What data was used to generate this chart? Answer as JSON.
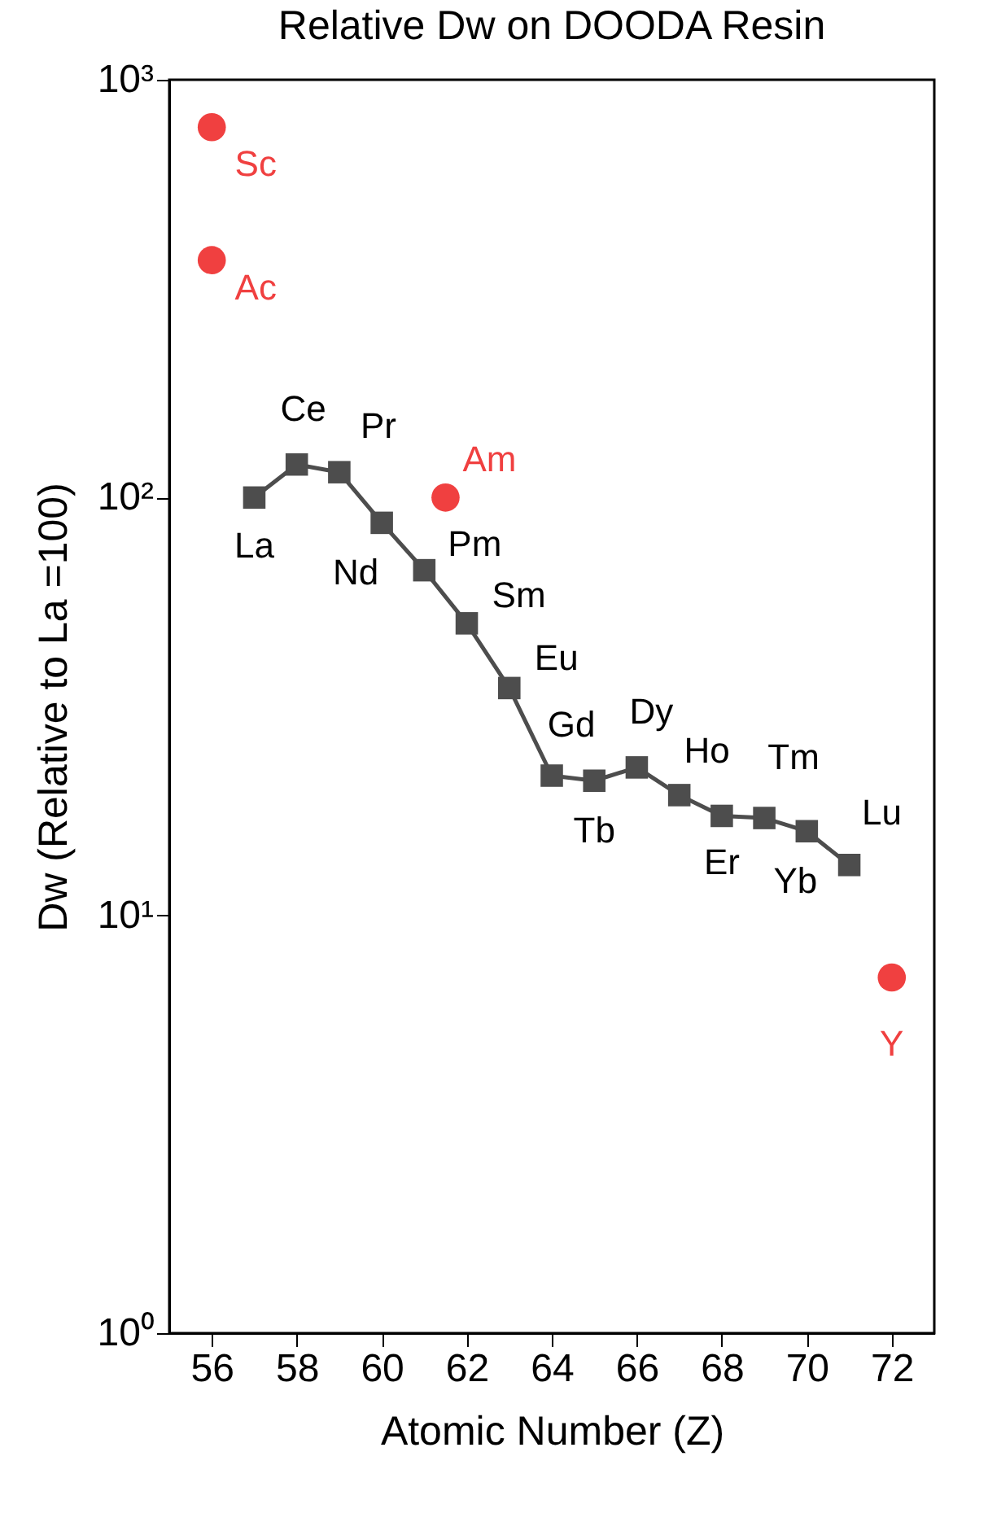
{
  "chart_data": {
    "type": "line",
    "title": "Relative Dw on DOODA Resin",
    "xlabel": "Atomic Number (Z)",
    "ylabel": "Dw (Relative to La =100)",
    "log": "y",
    "grid": false,
    "xlim": [
      55,
      73
    ],
    "xticks": [
      56,
      58,
      60,
      62,
      64,
      66,
      68,
      70,
      72
    ],
    "ylim": [
      1,
      1000
    ],
    "yticks": [
      {
        "value": 1,
        "label": "10⁰"
      },
      {
        "value": 10,
        "label": "10¹"
      },
      {
        "value": 100,
        "label": "10²"
      },
      {
        "value": 1000,
        "label": "10³"
      }
    ],
    "series": [
      {
        "color": "#4d4d4d",
        "marker": "square",
        "x": [
          57,
          58,
          59,
          60,
          61,
          62,
          63,
          64,
          65,
          66,
          67,
          68,
          69,
          70,
          71
        ],
        "values": [
          100,
          120,
          115,
          87,
          67,
          50,
          35,
          21.6,
          21,
          22.6,
          19.4,
          17.3,
          17.1,
          15.9,
          13.2
        ]
      },
      {
        "type": "scatter",
        "color": "#f04040",
        "marker": "circle",
        "x": [
          56,
          56,
          61.5,
          72
        ],
        "values": [
          770,
          370,
          100,
          7.1
        ]
      }
    ],
    "annotations": [
      {
        "text": "La",
        "x": 57,
        "y": 100
      },
      {
        "text": "Ce",
        "x": 58,
        "y": 120
      },
      {
        "text": "Pr",
        "x": 59,
        "y": 115
      },
      {
        "text": "Nd",
        "x": 60,
        "y": 87
      },
      {
        "text": "Pm",
        "x": 61,
        "y": 67
      },
      {
        "text": "Sm",
        "x": 62,
        "y": 50
      },
      {
        "text": "Eu",
        "x": 63,
        "y": 35
      },
      {
        "text": "Gd",
        "x": 64,
        "y": 21.6
      },
      {
        "text": "Tb",
        "x": 65,
        "y": 21
      },
      {
        "text": "Dy",
        "x": 66,
        "y": 22.6
      },
      {
        "text": "Ho",
        "x": 67,
        "y": 19.4
      },
      {
        "text": "Er",
        "x": 68,
        "y": 17.3
      },
      {
        "text": "Tm",
        "x": 69,
        "y": 17.1
      },
      {
        "text": "Yb",
        "x": 70,
        "y": 15.9
      },
      {
        "text": "Lu",
        "x": 71,
        "y": 13.2
      },
      {
        "text": "Sc",
        "x": 56,
        "y": 770
      },
      {
        "text": "Ac",
        "x": 56,
        "y": 370
      },
      {
        "text": "Am",
        "x": 61.5,
        "y": 100
      },
      {
        "text": "Y",
        "x": 72,
        "y": 7.1
      }
    ]
  }
}
